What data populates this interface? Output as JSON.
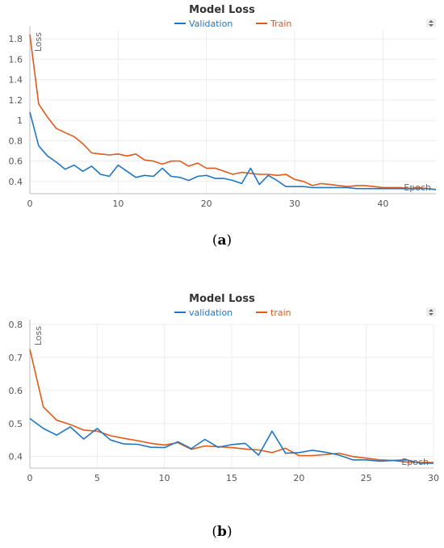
{
  "chart_data": [
    {
      "type": "line",
      "title": "Model Loss",
      "subfigure_label": "(a)",
      "xlabel": "Epoch",
      "ylabel": "Loss",
      "xlim": [
        0,
        46
      ],
      "ylim": [
        0.28,
        1.88
      ],
      "xticks": [
        0,
        10,
        20,
        30,
        40
      ],
      "yticks": [
        0.4,
        0.6,
        0.8,
        1,
        1.2,
        1.4,
        1.6,
        1.8
      ],
      "grid": true,
      "legend_position": "top-center",
      "series": [
        {
          "name": "Validation",
          "color": "#1f77c4",
          "x": [
            0,
            1,
            2,
            3,
            4,
            5,
            6,
            7,
            8,
            9,
            10,
            11,
            12,
            13,
            14,
            15,
            16,
            17,
            18,
            19,
            20,
            21,
            22,
            23,
            24,
            25,
            26,
            27,
            28,
            29,
            30,
            31,
            32,
            33,
            34,
            35,
            36,
            37,
            38,
            39,
            40,
            41,
            42,
            43,
            44,
            45,
            46
          ],
          "values": [
            1.08,
            0.75,
            0.65,
            0.59,
            0.52,
            0.56,
            0.5,
            0.55,
            0.47,
            0.45,
            0.56,
            0.5,
            0.44,
            0.46,
            0.45,
            0.53,
            0.45,
            0.44,
            0.41,
            0.45,
            0.46,
            0.43,
            0.43,
            0.41,
            0.38,
            0.53,
            0.37,
            0.46,
            0.41,
            0.35,
            0.35,
            0.35,
            0.34,
            0.34,
            0.34,
            0.34,
            0.34,
            0.33,
            0.33,
            0.33,
            0.33,
            0.33,
            0.33,
            0.33,
            0.33,
            0.33,
            0.32
          ]
        },
        {
          "name": "Train",
          "color": "#e05a1a",
          "x": [
            0,
            1,
            2,
            3,
            4,
            5,
            6,
            7,
            8,
            9,
            10,
            11,
            12,
            13,
            14,
            15,
            16,
            17,
            18,
            19,
            20,
            21,
            22,
            23,
            24,
            25,
            26,
            27,
            28,
            29,
            30,
            31,
            32,
            33,
            34,
            35,
            36,
            37,
            38,
            39,
            40,
            41,
            42,
            43,
            44,
            45,
            46
          ],
          "values": [
            1.84,
            1.16,
            1.03,
            0.92,
            0.88,
            0.84,
            0.77,
            0.68,
            0.67,
            0.66,
            0.67,
            0.65,
            0.67,
            0.61,
            0.6,
            0.57,
            0.6,
            0.6,
            0.55,
            0.58,
            0.53,
            0.53,
            0.5,
            0.47,
            0.49,
            0.48,
            0.47,
            0.47,
            0.46,
            0.47,
            0.42,
            0.4,
            0.36,
            0.38,
            0.37,
            0.36,
            0.35,
            0.36,
            0.36,
            0.35,
            0.34,
            0.34,
            0.34,
            0.33,
            0.34,
            0.33,
            0.32
          ]
        }
      ]
    },
    {
      "type": "line",
      "title": "Model Loss",
      "subfigure_label": "(b)",
      "xlabel": "Epoch",
      "ylabel": "Loss",
      "xlim": [
        0,
        30
      ],
      "ylim": [
        0.365,
        0.8
      ],
      "xticks": [
        0,
        5,
        10,
        15,
        20,
        25,
        30
      ],
      "yticks": [
        0.4,
        0.5,
        0.6,
        0.7,
        0.8
      ],
      "grid": true,
      "legend_position": "top-center",
      "series": [
        {
          "name": "validation",
          "color": "#1f77c4",
          "x": [
            0,
            1,
            2,
            3,
            4,
            5,
            6,
            7,
            8,
            9,
            10,
            11,
            12,
            13,
            14,
            15,
            16,
            17,
            18,
            19,
            20,
            21,
            22,
            23,
            24,
            25,
            26,
            27,
            28,
            29,
            30
          ],
          "values": [
            0.515,
            0.485,
            0.465,
            0.49,
            0.453,
            0.485,
            0.45,
            0.438,
            0.437,
            0.428,
            0.427,
            0.445,
            0.424,
            0.452,
            0.428,
            0.436,
            0.44,
            0.404,
            0.477,
            0.41,
            0.412,
            0.419,
            0.413,
            0.404,
            0.39,
            0.39,
            0.386,
            0.388,
            0.39,
            0.38,
            0.38
          ]
        },
        {
          "name": "train",
          "color": "#e05a1a",
          "x": [
            0,
            1,
            2,
            3,
            4,
            5,
            6,
            7,
            8,
            9,
            10,
            11,
            12,
            13,
            14,
            15,
            16,
            17,
            18,
            19,
            20,
            21,
            22,
            23,
            24,
            25,
            26,
            27,
            28,
            29,
            30
          ],
          "values": [
            0.725,
            0.55,
            0.51,
            0.497,
            0.48,
            0.477,
            0.463,
            0.455,
            0.448,
            0.44,
            0.435,
            0.442,
            0.422,
            0.432,
            0.43,
            0.427,
            0.423,
            0.42,
            0.412,
            0.425,
            0.403,
            0.403,
            0.406,
            0.41,
            0.4,
            0.395,
            0.39,
            0.388,
            0.383,
            0.382,
            0.382
          ]
        }
      ]
    }
  ]
}
